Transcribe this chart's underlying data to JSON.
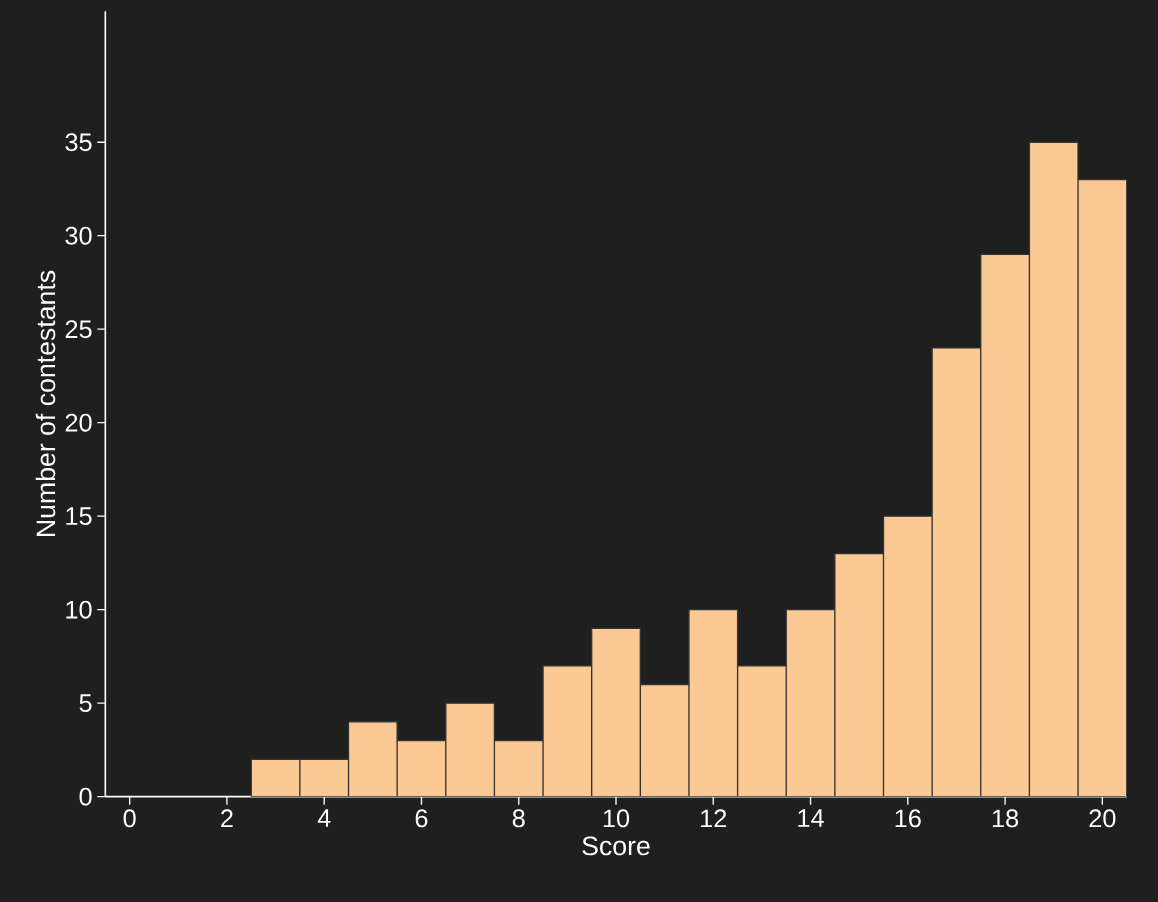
{
  "chart_data": {
    "type": "histogram",
    "xlabel": "Score",
    "ylabel": "Number of contestants",
    "bins": [
      2.5,
      3.5,
      4.5,
      5.5,
      6.5,
      7.5,
      8.5,
      9.5,
      10.5,
      11.5,
      12.5,
      13.5,
      14.5,
      15.5,
      16.5,
      17.5,
      18.5,
      19.5,
      20.5
    ],
    "values": [
      2,
      2,
      4,
      3,
      5,
      3,
      7,
      9,
      6,
      10,
      7,
      10,
      13,
      15,
      24,
      29,
      35,
      33
    ],
    "color": "#fbc994",
    "xlim": [
      -0.5,
      20.5
    ],
    "ylim": [
      0,
      42
    ],
    "xticks": [
      0,
      2,
      4,
      6,
      8,
      10,
      12,
      14,
      16,
      18,
      20
    ],
    "yticks": [
      0,
      5,
      10,
      15,
      20,
      25,
      30,
      35
    ],
    "grid": false
  }
}
